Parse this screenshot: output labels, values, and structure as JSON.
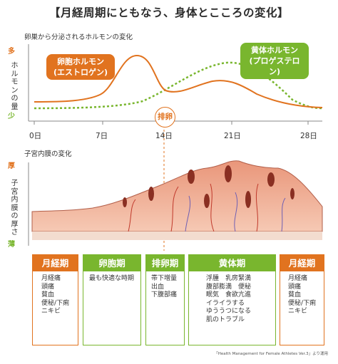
{
  "title": "【月経周期にともなう、身体とこころの変化】",
  "hormone_section": {
    "subtitle": "卵巣から分泌されるホルモンの変化",
    "ylabel": "ホルモンの量",
    "level_high": "多",
    "level_low": "少",
    "estrogen_label_1": "卵胞ホルモン",
    "estrogen_label_2": "(エストロゲン)",
    "progesterone_label_1": "黄体ホルモン",
    "progesterone_label_2": "(プロゲステロン)",
    "ovulation_label": "排卵",
    "estrogen_color": "#e1731f",
    "progesterone_color": "#79b62e"
  },
  "days": [
    "0日",
    "7日",
    "14日",
    "21日",
    "28日"
  ],
  "endometrium_section": {
    "subtitle": "子宮内膜の変化",
    "ylabel": "子宮内膜の厚さ",
    "level_thick": "厚",
    "level_thin": "薄"
  },
  "phases": [
    {
      "name": "月経期",
      "color": "orange",
      "symptoms": [
        "月経痛",
        "頭痛",
        "貧血",
        "便秘/下痢",
        "ニキビ"
      ]
    },
    {
      "name": "卵胞期",
      "color": "green",
      "symptoms": [
        "最も快適な時期"
      ]
    },
    {
      "name": "排卵期",
      "color": "green",
      "symptoms": [
        "帯下増量",
        "出血",
        "下腹部痛"
      ]
    },
    {
      "name": "黄体期",
      "color": "green",
      "symptoms": [
        "浮腫　乳房緊満",
        "腹部膨満　便秘",
        "眠気　食欲亢進",
        "イライラする",
        "ゆううつになる",
        "肌のトラブル"
      ]
    },
    {
      "name": "月経期",
      "color": "orange",
      "symptoms": [
        "月経痛",
        "頭痛",
        "貧血",
        "便秘/下痢",
        "ニキビ"
      ]
    }
  ],
  "credit": "「Health Management for Female Athletes Ver.3」より運用"
}
